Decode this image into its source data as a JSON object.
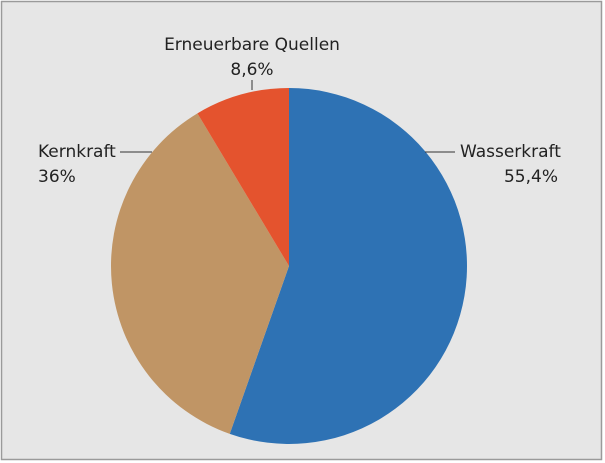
{
  "chart_data": {
    "type": "pie",
    "categories": [
      "Wasserkraft",
      "Kernkraft",
      "Erneuerbare Quellen"
    ],
    "values": [
      55.4,
      36,
      8.6
    ],
    "value_labels": [
      "55,4%",
      "36%",
      "8,6%"
    ],
    "colors": [
      "#2e72b4",
      "#c09565",
      "#e4532e"
    ]
  }
}
